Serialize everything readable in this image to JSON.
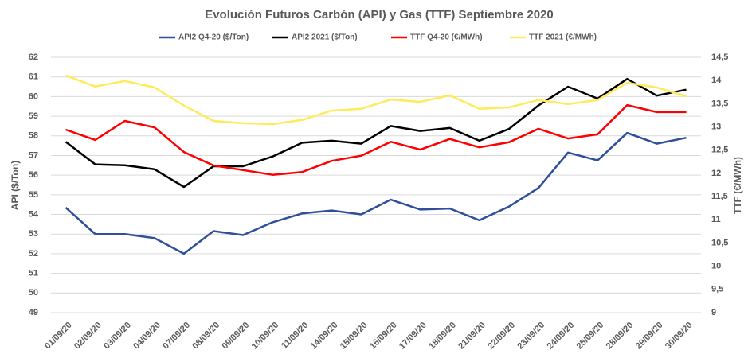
{
  "chart_data": {
    "type": "line",
    "title": "Evolución Futuros Carbón (API) y Gas (TTF) Septiembre 2020",
    "y_label": "API ($/Ton)",
    "y2_label": "TTF (€/MWh)",
    "categories": [
      "01/09/20",
      "02/09/20",
      "03/09/20",
      "04/09/20",
      "07/09/20",
      "08/09/20",
      "09/09/20",
      "10/09/20",
      "11/09/20",
      "14/09/20",
      "15/09/20",
      "16/09/20",
      "17/09/20",
      "18/09/20",
      "21/09/20",
      "22/09/20",
      "23/09/20",
      "24/09/20",
      "25/09/20",
      "28/09/20",
      "29/09/20",
      "30/09/20"
    ],
    "series": [
      {
        "name": "API2 Q4-20 ($/Ton)",
        "color": "#2f4f9a",
        "values": [
          54.35,
          53.0,
          53.0,
          52.8,
          52.0,
          53.15,
          52.95,
          53.6,
          54.05,
          54.2,
          54.0,
          54.75,
          54.25,
          54.3,
          53.7,
          54.4,
          55.35,
          57.15,
          56.75,
          58.15,
          57.6,
          57.9
        ]
      },
      {
        "name": "API2 2021 ($/Ton)",
        "color": "#000000",
        "values": [
          57.7,
          56.55,
          56.5,
          56.3,
          55.4,
          56.45,
          56.45,
          56.95,
          57.65,
          57.75,
          57.6,
          58.5,
          58.25,
          58.4,
          57.75,
          58.35,
          59.55,
          60.5,
          59.9,
          60.9,
          60.05,
          60.35
        ]
      },
      {
        "name": "TTF Q4-20 (€/MWh)",
        "color": "#ff0000",
        "axis": "y2",
        "values": [
          12.94,
          12.72,
          13.13,
          12.99,
          12.46,
          12.17,
          12.07,
          11.97,
          12.03,
          12.27,
          12.38,
          12.68,
          12.51,
          12.74,
          12.56,
          12.67,
          12.96,
          12.75,
          12.84,
          13.47,
          13.32,
          13.32
        ]
      },
      {
        "name": "TTF 2021 (€/MWh)",
        "color": "#ffeb5a",
        "axis": "y2",
        "values": [
          14.11,
          13.87,
          13.99,
          13.85,
          13.46,
          13.13,
          13.08,
          13.06,
          13.15,
          13.35,
          13.39,
          13.59,
          13.54,
          13.68,
          13.39,
          13.42,
          13.58,
          13.49,
          13.58,
          13.95,
          13.85,
          13.66
        ]
      }
    ],
    "ylim": [
      49,
      62
    ],
    "yticks": [
      49,
      50,
      51,
      52,
      53,
      54,
      55,
      56,
      57,
      58,
      59,
      60,
      61,
      62
    ],
    "y2lim": [
      9,
      14.5
    ],
    "y2ticks": [
      9,
      {
        "value": 9.5,
        "label": "9,5"
      },
      10,
      {
        "value": 10.5,
        "label": "10,5"
      },
      11,
      {
        "value": 11.5,
        "label": "11,5"
      },
      12,
      {
        "value": 12.5,
        "label": "12,5"
      },
      13,
      {
        "value": 13.5,
        "label": "13,5"
      },
      14,
      {
        "value": 14.5,
        "label": "14,5"
      }
    ],
    "grid": true,
    "legend": "top"
  }
}
